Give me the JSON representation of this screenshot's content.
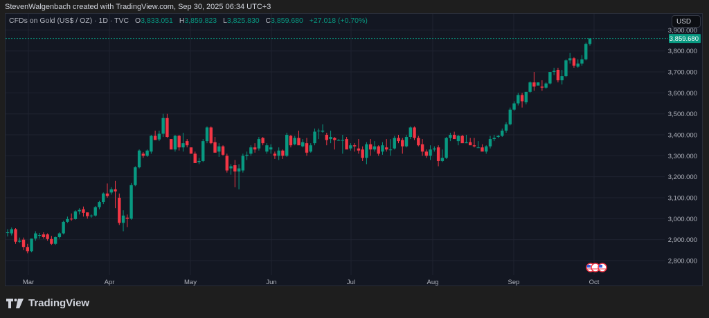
{
  "header": {
    "attribution": "StevenWalgenbach created with TradingView.com, Sep 30, 2025 06:34 UTC+3"
  },
  "legend": {
    "symbol": "CFDs on Gold (US$ / OZ) · 1D · TVC",
    "open_label": "O",
    "open": "3,833.051",
    "high_label": "H",
    "high": "3,859.823",
    "low_label": "L",
    "low": "3,825.830",
    "close_label": "C",
    "close": "3,859.680",
    "change": "+27.018 (+0.70%)"
  },
  "currency_button": "USD",
  "last_price_tag": "3,859.680",
  "logo": {
    "text": "TradingView"
  },
  "colors": {
    "up": "#089981",
    "down": "#f23645",
    "background": "#131722",
    "grid": "#1f2330",
    "axis_text": "#b2b5be"
  },
  "chart_data": {
    "type": "candlestick",
    "title": "CFDs on Gold (US$ / OZ) · 1D · TVC",
    "xlabel": "",
    "ylabel": "USD",
    "ylim": [
      2760,
      3920
    ],
    "y_ticks": [
      "3,900.000",
      "3,800.000",
      "3,700.000",
      "3,600.000",
      "3,500.000",
      "3,400.000",
      "3,300.000",
      "3,200.000",
      "3,100.000",
      "3,000.000",
      "2,900.000",
      "2,800.000"
    ],
    "x_ticks": [
      "Mar",
      "Apr",
      "May",
      "Jun",
      "Jul",
      "Aug",
      "Sep",
      "Oct"
    ],
    "grid": true,
    "last_price": 3859.68,
    "ohlc": [
      [
        2935,
        2950,
        2915,
        2935
      ],
      [
        2930,
        2958,
        2920,
        2950
      ],
      [
        2950,
        2955,
        2880,
        2890
      ],
      [
        2890,
        2910,
        2885,
        2895
      ],
      [
        2900,
        2910,
        2850,
        2865
      ],
      [
        2865,
        2880,
        2835,
        2845
      ],
      [
        2845,
        2905,
        2840,
        2905
      ],
      [
        2905,
        2940,
        2895,
        2930
      ],
      [
        2920,
        2932,
        2905,
        2922
      ],
      [
        2925,
        2935,
        2905,
        2912
      ],
      [
        2925,
        2930,
        2895,
        2903
      ],
      [
        2903,
        2918,
        2875,
        2880
      ],
      [
        2880,
        2915,
        2875,
        2912
      ],
      [
        2912,
        2935,
        2905,
        2930
      ],
      [
        2930,
        2990,
        2925,
        2985
      ],
      [
        2985,
        3010,
        2980,
        2998
      ],
      [
        3000,
        3025,
        2990,
        2998
      ],
      [
        2998,
        3040,
        2995,
        3035
      ],
      [
        3035,
        3050,
        3020,
        3042
      ],
      [
        3045,
        3058,
        3010,
        3028
      ],
      [
        3030,
        3030,
        3000,
        3012
      ],
      [
        3012,
        3020,
        3005,
        3015
      ],
      [
        3015,
        3060,
        3010,
        3055
      ],
      [
        3055,
        3085,
        3045,
        3080
      ],
      [
        3080,
        3125,
        3070,
        3120
      ],
      [
        3120,
        3168,
        3100,
        3108
      ],
      [
        3125,
        3150,
        3115,
        3140
      ],
      [
        3140,
        3180,
        3050,
        3130
      ],
      [
        3100,
        3120,
        2970,
        2980
      ],
      [
        2980,
        3040,
        2940,
        3015
      ],
      [
        3005,
        3020,
        2960,
        3000
      ],
      [
        3000,
        3170,
        2995,
        3160
      ],
      [
        3160,
        3250,
        3155,
        3245
      ],
      [
        3245,
        3330,
        3240,
        3325
      ],
      [
        3310,
        3318,
        3290,
        3300
      ],
      [
        3300,
        3330,
        3295,
        3325
      ],
      [
        3320,
        3400,
        3310,
        3395
      ],
      [
        3395,
        3420,
        3385,
        3375
      ],
      [
        3378,
        3420,
        3370,
        3405
      ],
      [
        3405,
        3500,
        3390,
        3480
      ],
      [
        3480,
        3500,
        3385,
        3390
      ],
      [
        3380,
        3380,
        3360,
        3330
      ],
      [
        3330,
        3400,
        3320,
        3395
      ],
      [
        3395,
        3400,
        3325,
        3340
      ],
      [
        3340,
        3410,
        3320,
        3360
      ],
      [
        3370,
        3380,
        3340,
        3350
      ],
      [
        3340,
        3340,
        3310,
        3310
      ],
      [
        3310,
        3320,
        3270,
        3265
      ],
      [
        3270,
        3290,
        3260,
        3275
      ],
      [
        3275,
        3380,
        3270,
        3370
      ],
      [
        3370,
        3440,
        3360,
        3435
      ],
      [
        3435,
        3440,
        3355,
        3360
      ],
      [
        3365,
        3390,
        3315,
        3315
      ],
      [
        3320,
        3360,
        3295,
        3345
      ],
      [
        3345,
        3350,
        3300,
        3305
      ],
      [
        3300,
        3310,
        3220,
        3230
      ],
      [
        3240,
        3260,
        3210,
        3250
      ],
      [
        3255,
        3280,
        3150,
        3225
      ],
      [
        3225,
        3260,
        3140,
        3240
      ],
      [
        3230,
        3310,
        3220,
        3300
      ],
      [
        3300,
        3320,
        3280,
        3305
      ],
      [
        3310,
        3350,
        3300,
        3340
      ],
      [
        3340,
        3360,
        3315,
        3330
      ],
      [
        3335,
        3390,
        3325,
        3380
      ],
      [
        3385,
        3390,
        3350,
        3360
      ],
      [
        3320,
        3360,
        3310,
        3350
      ],
      [
        3330,
        3355,
        3310,
        3340
      ],
      [
        3310,
        3320,
        3285,
        3300
      ],
      [
        3300,
        3340,
        3280,
        3325
      ],
      [
        3325,
        3330,
        3285,
        3300
      ],
      [
        3300,
        3410,
        3295,
        3400
      ],
      [
        3395,
        3400,
        3340,
        3350
      ],
      [
        3355,
        3395,
        3350,
        3385
      ],
      [
        3385,
        3420,
        3380,
        3350
      ],
      [
        3345,
        3380,
        3340,
        3365
      ],
      [
        3360,
        3385,
        3300,
        3315
      ],
      [
        3320,
        3360,
        3315,
        3350
      ],
      [
        3360,
        3430,
        3350,
        3415
      ],
      [
        3420,
        3430,
        3380,
        3420
      ],
      [
        3415,
        3450,
        3410,
        3420
      ],
      [
        3400,
        3410,
        3350,
        3375
      ],
      [
        3380,
        3420,
        3360,
        3390
      ],
      [
        3385,
        3390,
        3330,
        3375
      ],
      [
        3375,
        3380,
        3375,
        3375
      ],
      [
        3375,
        3400,
        3310,
        3375
      ],
      [
        3380,
        3390,
        3350,
        3330
      ],
      [
        3335,
        3360,
        3325,
        3350
      ],
      [
        3350,
        3360,
        3320,
        3345
      ],
      [
        3335,
        3380,
        3310,
        3325
      ],
      [
        3330,
        3345,
        3275,
        3290
      ],
      [
        3290,
        3365,
        3260,
        3355
      ],
      [
        3355,
        3380,
        3300,
        3330
      ],
      [
        3330,
        3370,
        3320,
        3345
      ],
      [
        3345,
        3350,
        3300,
        3310
      ],
      [
        3320,
        3365,
        3305,
        3350
      ],
      [
        3340,
        3380,
        3320,
        3330
      ],
      [
        3330,
        3380,
        3300,
        3330
      ],
      [
        3335,
        3395,
        3330,
        3385
      ],
      [
        3385,
        3400,
        3360,
        3370
      ],
      [
        3375,
        3385,
        3310,
        3345
      ],
      [
        3345,
        3400,
        3340,
        3390
      ],
      [
        3390,
        3440,
        3380,
        3435
      ],
      [
        3435,
        3440,
        3375,
        3385
      ],
      [
        3385,
        3395,
        3345,
        3350
      ],
      [
        3355,
        3380,
        3300,
        3320
      ],
      [
        3320,
        3330,
        3290,
        3300
      ],
      [
        3300,
        3350,
        3280,
        3330
      ],
      [
        3330,
        3345,
        3320,
        3335
      ],
      [
        3340,
        3350,
        3250,
        3275
      ],
      [
        3275,
        3330,
        3270,
        3290
      ],
      [
        3290,
        3390,
        3285,
        3385
      ],
      [
        3385,
        3410,
        3370,
        3400
      ],
      [
        3400,
        3415,
        3390,
        3380
      ],
      [
        3370,
        3400,
        3350,
        3395
      ],
      [
        3395,
        3400,
        3370,
        3360
      ],
      [
        3360,
        3400,
        3360,
        3365
      ],
      [
        3365,
        3385,
        3355,
        3350
      ],
      [
        3350,
        3385,
        3340,
        3345
      ],
      [
        3340,
        3370,
        3340,
        3340
      ],
      [
        3340,
        3355,
        3330,
        3320
      ],
      [
        3320,
        3350,
        3310,
        3345
      ],
      [
        3345,
        3395,
        3335,
        3380
      ],
      [
        3380,
        3400,
        3370,
        3385
      ],
      [
        3390,
        3400,
        3385,
        3395
      ],
      [
        3395,
        3430,
        3390,
        3420
      ],
      [
        3420,
        3460,
        3410,
        3450
      ],
      [
        3450,
        3530,
        3445,
        3520
      ],
      [
        3520,
        3560,
        3515,
        3550
      ],
      [
        3550,
        3600,
        3540,
        3590
      ],
      [
        3590,
        3600,
        3530,
        3560
      ],
      [
        3555,
        3600,
        3545,
        3605
      ],
      [
        3605,
        3655,
        3600,
        3650
      ],
      [
        3650,
        3700,
        3610,
        3630
      ],
      [
        3635,
        3650,
        3640,
        3650
      ],
      [
        3630,
        3660,
        3610,
        3625
      ],
      [
        3625,
        3650,
        3620,
        3645
      ],
      [
        3645,
        3700,
        3640,
        3700
      ],
      [
        3700,
        3720,
        3685,
        3705
      ],
      [
        3710,
        3720,
        3650,
        3660
      ],
      [
        3660,
        3710,
        3640,
        3680
      ],
      [
        3680,
        3760,
        3675,
        3755
      ],
      [
        3755,
        3790,
        3740,
        3765
      ],
      [
        3765,
        3770,
        3720,
        3730
      ],
      [
        3725,
        3760,
        3720,
        3740
      ],
      [
        3740,
        3780,
        3730,
        3760
      ],
      [
        3760,
        3840,
        3755,
        3833
      ],
      [
        3833,
        3860,
        3826,
        3860
      ]
    ]
  }
}
